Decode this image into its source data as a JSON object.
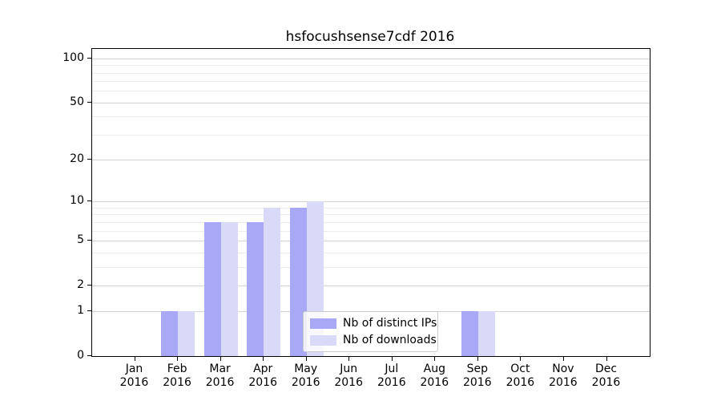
{
  "chart_data": {
    "type": "bar",
    "title": "hsfocushsense7cdf 2016",
    "categories": [
      "Jan",
      "Feb",
      "Mar",
      "Apr",
      "May",
      "Jun",
      "Jul",
      "Aug",
      "Sep",
      "Oct",
      "Nov",
      "Dec"
    ],
    "year_label": "2016",
    "series": [
      {
        "name": "Nb of distinct IPs",
        "color": "#a8a8f6",
        "values": [
          0,
          1,
          7,
          7,
          9,
          0,
          0,
          0,
          1,
          0,
          0,
          0
        ]
      },
      {
        "name": "Nb of downloads",
        "color": "#d9d9f8",
        "values": [
          0,
          1,
          7,
          9,
          10,
          0,
          0,
          0,
          1,
          0,
          0,
          0
        ]
      }
    ],
    "xlabel": "",
    "ylabel": "",
    "yscale": "log1p",
    "ylim": [
      0,
      116
    ],
    "yticks": [
      0,
      1,
      2,
      5,
      10,
      20,
      50,
      100
    ],
    "yticks_minor": [
      3,
      4,
      6,
      7,
      8,
      9,
      30,
      40,
      60,
      70,
      80,
      90
    ],
    "grid": "on",
    "legend_position": "lower-center"
  },
  "colors": {
    "grid_major": "#d2d2d2",
    "grid_minor": "#ececec",
    "spine": "#000000",
    "text": "#000000",
    "background": "#ffffff"
  }
}
